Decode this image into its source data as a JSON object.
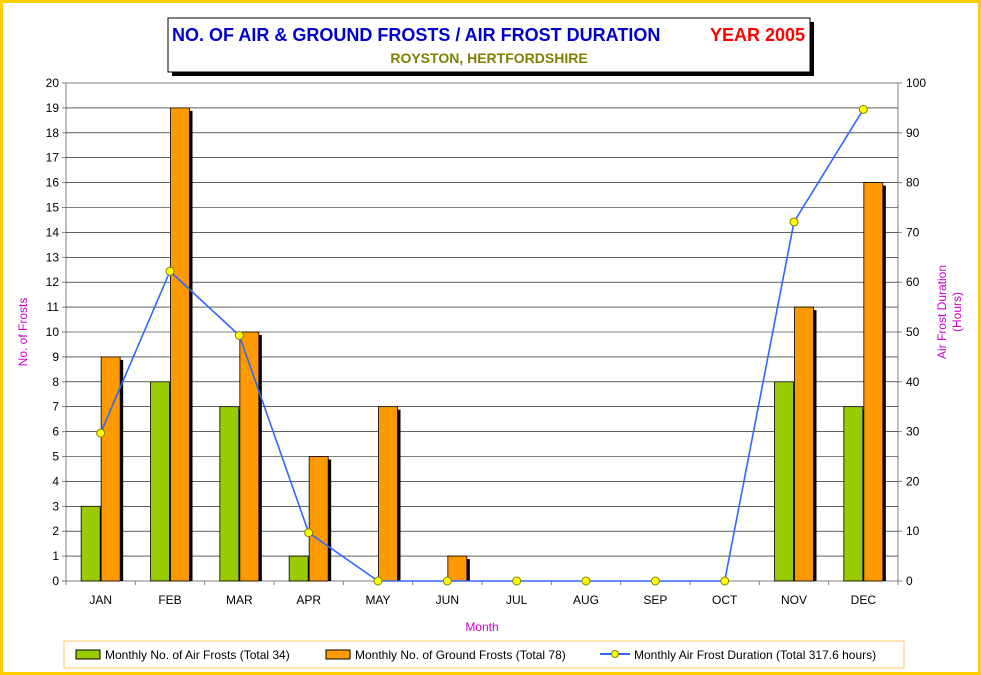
{
  "chart_data": {
    "type": "bar",
    "title": "NO. OF AIR & GROUND FROSTS / AIR FROST DURATION",
    "title_year": "YEAR 2005",
    "subtitle": "ROYSTON, HERTFORDSHIRE",
    "xlabel": "Month",
    "ylabel": "No. of Frosts",
    "y2label_line1": "Air Frost Duration",
    "y2label_line2": "(Hours)",
    "categories": [
      "JAN",
      "FEB",
      "MAR",
      "APR",
      "MAY",
      "JUN",
      "JUL",
      "AUG",
      "SEP",
      "OCT",
      "NOV",
      "DEC"
    ],
    "ylim": [
      0,
      20
    ],
    "y2lim": [
      0,
      100
    ],
    "yticks": [
      "0",
      "1",
      "2",
      "3",
      "4",
      "5",
      "6",
      "7",
      "8",
      "9",
      "10",
      "11",
      "12",
      "13",
      "14",
      "15",
      "16",
      "17",
      "18",
      "19",
      "20"
    ],
    "y2ticks": [
      "0",
      "10",
      "20",
      "30",
      "40",
      "50",
      "60",
      "70",
      "80",
      "90",
      "100"
    ],
    "grid": true,
    "legend_position": "bottom",
    "series": [
      {
        "name": "Monthly No. of Air Frosts (Total 34)",
        "kind": "bar",
        "color": "#99cc00",
        "values": [
          3,
          8,
          7,
          1,
          0,
          0,
          0,
          0,
          0,
          0,
          8,
          7
        ]
      },
      {
        "name": "Monthly No. of Ground Frosts (Total 78)",
        "kind": "bar",
        "color": "#ff9900",
        "values": [
          9,
          19,
          10,
          5,
          7,
          1,
          0,
          0,
          0,
          0,
          11,
          16
        ]
      },
      {
        "name": "Monthly Air Frost Duration (Total 317.6 hours)",
        "kind": "line",
        "axis": "right",
        "color": "#3366ff",
        "marker_color": "#ffff00",
        "values": [
          29.7,
          62.2,
          49.3,
          9.7,
          0,
          0,
          0,
          0,
          0,
          0,
          72.1,
          94.7
        ]
      }
    ]
  }
}
